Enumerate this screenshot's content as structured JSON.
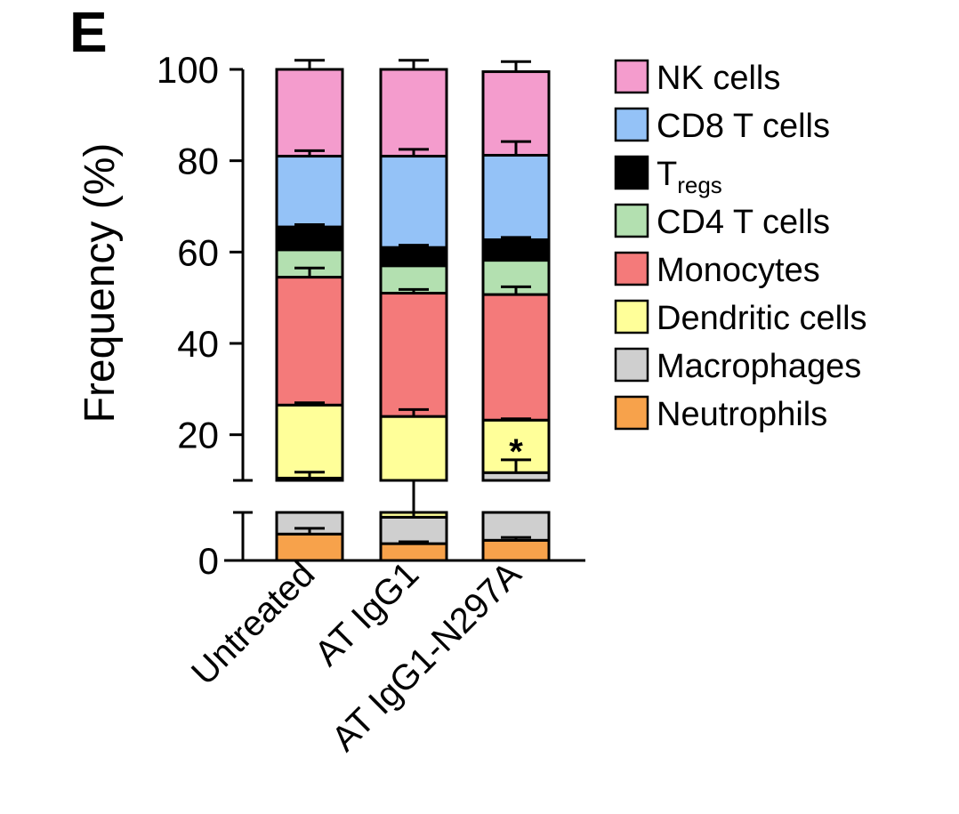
{
  "panel_label": "E",
  "chart_data": {
    "type": "bar",
    "stacked": true,
    "ylabel": "Frequency (%)",
    "ylim": [
      0,
      100
    ],
    "y_axis_break": true,
    "yticks": [
      0,
      20,
      40,
      60,
      80,
      100
    ],
    "categories": [
      "Untreated",
      "AT IgG1",
      "AT IgG1-N297A"
    ],
    "legend_position": "right",
    "series": [
      {
        "name": "Neutrophils",
        "color": "#f7a24b",
        "values": [
          5.5,
          3.5,
          4.2
        ],
        "errors": [
          1.2,
          0.4,
          0.6
        ]
      },
      {
        "name": "Macrophages",
        "color": "#cfcfcf",
        "values": [
          5.0,
          5.5,
          7.5
        ],
        "errors": [
          1.3,
          1.0,
          2.8
        ]
      },
      {
        "name": "Dendritic cells",
        "color": "#ffff99",
        "values": [
          16.0,
          15.0,
          11.5
        ],
        "errors": [
          0.5,
          1.5,
          0.3
        ]
      },
      {
        "name": "Monocytes",
        "color": "#f47a7a",
        "values": [
          28.0,
          27.0,
          27.5
        ],
        "errors": [
          2.0,
          0.8,
          1.7
        ]
      },
      {
        "name": "CD4 T cells",
        "color": "#b3e0b0",
        "values": [
          6.0,
          6.0,
          7.5
        ],
        "errors": [
          0.3,
          0.5,
          0.2
        ]
      },
      {
        "name": "Tregs",
        "color": "#000000",
        "values": [
          5.0,
          4.0,
          4.5
        ],
        "errors": [
          0.5,
          0.5,
          0.5
        ]
      },
      {
        "name": "CD8 T cells",
        "color": "#94c2f7",
        "values": [
          15.5,
          20.0,
          18.5
        ],
        "errors": [
          1.2,
          1.5,
          3.0
        ]
      },
      {
        "name": "NK cells",
        "color": "#f49ccd",
        "values": [
          19.0,
          19.0,
          18.3
        ],
        "errors": [
          2.0,
          2.0,
          2.2
        ]
      }
    ],
    "legend": [
      {
        "main": "NK cells",
        "sub": "",
        "color": "#f49ccd"
      },
      {
        "main": "CD8 T cells",
        "sub": "",
        "color": "#94c2f7"
      },
      {
        "main": "T",
        "sub": "regs",
        "color": "#000000"
      },
      {
        "main": "CD4 T cells",
        "sub": "",
        "color": "#b3e0b0"
      },
      {
        "main": "Monocytes",
        "sub": "",
        "color": "#f47a7a"
      },
      {
        "main": "Dendritic cells",
        "sub": "",
        "color": "#ffff99"
      },
      {
        "main": "Macrophages",
        "sub": "",
        "color": "#cfcfcf"
      },
      {
        "main": "Neutrophils",
        "sub": "",
        "color": "#f7a24b"
      }
    ],
    "annotations": [
      {
        "text": "*",
        "category": "AT IgG1-N297A",
        "series": "Dendritic cells"
      }
    ]
  }
}
